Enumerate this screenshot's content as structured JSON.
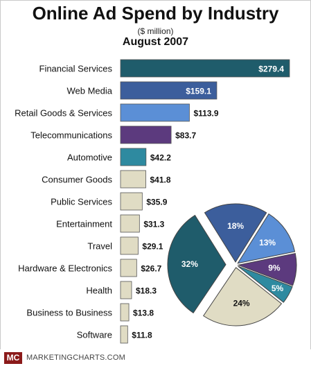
{
  "header": {
    "title": "Online Ad Spend by Industry",
    "subtitle": "($ million)",
    "period": "August 2007"
  },
  "footer": {
    "badge": "MC",
    "site": "MARKETINGCHARTS.COM"
  },
  "chart_data": [
    {
      "type": "bar",
      "orientation": "horizontal",
      "categories": [
        "Financial Services",
        "Web Media",
        "Retail Goods & Services",
        "Telecommunications",
        "Automotive",
        "Consumer Goods",
        "Public Services",
        "Entertainment",
        "Travel",
        "Hardware & Electronics",
        "Health",
        "Business to Business",
        "Software"
      ],
      "values": [
        279.4,
        159.1,
        113.9,
        83.7,
        42.2,
        41.8,
        35.9,
        31.3,
        29.1,
        26.7,
        18.3,
        13.8,
        11.8
      ],
      "data_labels": [
        "$279.4",
        "$159.1",
        "$113.9",
        "$83.7",
        "$42.2",
        "$41.8",
        "$35.9",
        "$31.3",
        "$29.1",
        "$26.7",
        "$18.3",
        "$13.8",
        "$11.8"
      ],
      "colors": [
        "#1f5c6b",
        "#3c5e9c",
        "#5b8fd6",
        "#5c3a7e",
        "#2e8aa0",
        "#e0dcc4",
        "#e0dcc4",
        "#e0dcc4",
        "#e0dcc4",
        "#e0dcc4",
        "#e0dcc4",
        "#e0dcc4",
        "#e0dcc4"
      ],
      "xlim": [
        0,
        279.4
      ],
      "grid": false
    },
    {
      "type": "pie",
      "slices": [
        {
          "label": "18%",
          "value": 18,
          "color": "#3c5e9c"
        },
        {
          "label": "13%",
          "value": 13,
          "color": "#5b8fd6"
        },
        {
          "label": "9%",
          "value": 9,
          "color": "#5c3a7e"
        },
        {
          "label": "5%",
          "value": 5,
          "color": "#2e8aa0"
        },
        {
          "label": "24%",
          "value": 24,
          "color": "#e0dcc4"
        },
        {
          "label": "32%",
          "value": 32,
          "color": "#1f5c6b"
        }
      ],
      "exploded": "32%"
    }
  ]
}
